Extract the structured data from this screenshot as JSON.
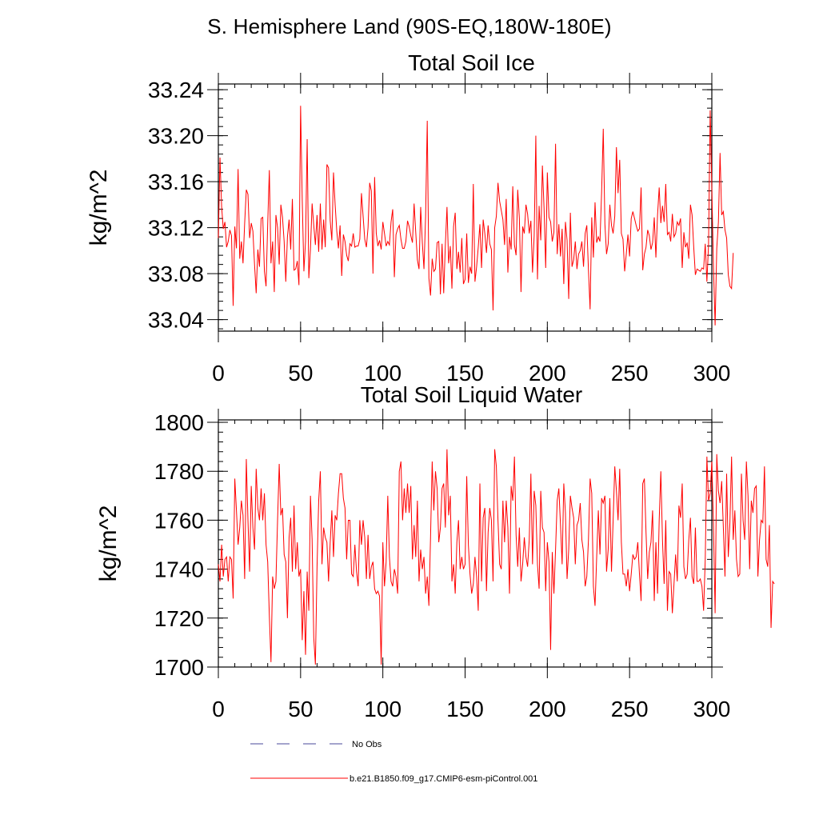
{
  "page": {
    "main_title": "S. Hemisphere Land (90S-EQ,180W-180E)"
  },
  "chart_data": [
    {
      "type": "line",
      "title": "Total Soil Ice",
      "xlabel": "",
      "ylabel": "kg/m^2",
      "xlim": [
        0,
        300
      ],
      "ylim": [
        33.03,
        33.245
      ],
      "x_ticks": [
        0,
        50,
        100,
        150,
        200,
        250,
        300
      ],
      "y_ticks": [
        33.04,
        33.08,
        33.12,
        33.16,
        33.2,
        33.24
      ],
      "y_tick_labels": [
        "33.04",
        "33.08",
        "33.12",
        "33.16",
        "33.20",
        "33.24"
      ],
      "series": [
        {
          "name": "b.e21.B1850.f09_g17.CMIP6-esm-piControl.001",
          "color": "#ff0000",
          "values": [
            33.111,
            33.181,
            33.138,
            33.119,
            33.125,
            33.103,
            33.108,
            33.118,
            33.113,
            33.052,
            33.121,
            33.102,
            33.171,
            33.093,
            33.108,
            33.089,
            33.124,
            33.153,
            33.149,
            33.111,
            33.124,
            33.117,
            33.088,
            33.063,
            33.101,
            33.086,
            33.128,
            33.129,
            33.082,
            33.069,
            33.123,
            33.17,
            33.089,
            33.108,
            33.064,
            33.131,
            33.12,
            33.088,
            33.14,
            33.129,
            33.108,
            33.073,
            33.112,
            33.127,
            33.101,
            33.145,
            33.083,
            33.084,
            33.091,
            33.07,
            33.226,
            33.144,
            33.082,
            33.108,
            33.197,
            33.076,
            33.101,
            33.141,
            33.122,
            33.105,
            33.131,
            33.099,
            33.141,
            33.101,
            33.127,
            33.103,
            33.175,
            33.172,
            33.126,
            33.109,
            33.168,
            33.14,
            33.117,
            33.102,
            33.122,
            33.078,
            33.114,
            33.108,
            33.096,
            33.091,
            33.106,
            33.104,
            33.115,
            33.103,
            33.104,
            33.104,
            33.11,
            33.15,
            33.13,
            33.11,
            33.103,
            33.12,
            33.159,
            33.152,
            33.08,
            33.164,
            33.115,
            33.104,
            33.109,
            33.101,
            33.125,
            33.115,
            33.104,
            33.108,
            33.105,
            33.125,
            33.136,
            33.077,
            33.114,
            33.119,
            33.122,
            33.11,
            33.102,
            33.102,
            33.108,
            33.126,
            33.121,
            33.113,
            33.107,
            33.141,
            33.116,
            33.092,
            33.084,
            33.138,
            33.107,
            33.084,
            33.13,
            33.213,
            33.076,
            33.061,
            33.093,
            33.082,
            33.084,
            33.107,
            33.108,
            33.062,
            33.106,
            33.063,
            33.105,
            33.138,
            33.089,
            33.104,
            33.067,
            33.121,
            33.133,
            33.084,
            33.099,
            33.081,
            33.111,
            33.071,
            33.075,
            33.115,
            33.072,
            33.086,
            33.08,
            33.158,
            33.073,
            33.086,
            33.103,
            33.123,
            33.085,
            33.127,
            33.115,
            33.098,
            33.122,
            33.106,
            33.101,
            33.048,
            33.12,
            33.13,
            33.159,
            33.143,
            33.135,
            33.127,
            33.105,
            33.145,
            33.081,
            33.112,
            33.101,
            33.156,
            33.105,
            33.096,
            33.153,
            33.128,
            33.064,
            33.121,
            33.115,
            33.14,
            33.132,
            33.115,
            33.126,
            33.081,
            33.113,
            33.2,
            33.075,
            33.139,
            33.109,
            33.174,
            33.137,
            33.085,
            33.168,
            33.129,
            33.125,
            33.108,
            33.116,
            33.193,
            33.097,
            33.123,
            33.095,
            33.119,
            33.071,
            33.125,
            33.109,
            33.058,
            33.133,
            33.086,
            33.092,
            33.108,
            33.084,
            33.097,
            33.1,
            33.108,
            33.086,
            33.115,
            33.122,
            33.083,
            33.049,
            33.129,
            33.094,
            33.142,
            33.107,
            33.112,
            33.108,
            33.151,
            33.206,
            33.123,
            33.097,
            33.106,
            33.14,
            33.122,
            33.115,
            33.13,
            33.19,
            33.15,
            33.179,
            33.115,
            33.11,
            33.082,
            33.097,
            33.114,
            33.095,
            33.128,
            33.134,
            33.128,
            33.122,
            33.117,
            33.119,
            33.155,
            33.083,
            33.097,
            33.103,
            33.118,
            33.113,
            33.101,
            33.107,
            33.129,
            33.094,
            33.131,
            33.155,
            33.124,
            33.139,
            33.125,
            33.158,
            33.114,
            33.116,
            33.108,
            33.132,
            33.112,
            33.115,
            33.125,
            33.122,
            33.128,
            33.085,
            33.116,
            33.103,
            33.107,
            33.093,
            33.14,
            33.131,
            33.103,
            33.079,
            33.084,
            33.083,
            33.082,
            33.085,
            33.084,
            33.106,
            33.073,
            33.105,
            33.222,
            33.154,
            33.086,
            33.035,
            33.102,
            33.125,
            33.185,
            33.131,
            33.134,
            33.118,
            33.111,
            33.079,
            33.069,
            33.067,
            33.098
          ]
        },
        {
          "name": "No Obs",
          "color": "#4a4a9a",
          "values": []
        }
      ]
    },
    {
      "type": "line",
      "title": "Total Soil Liquid Water",
      "xlabel": "",
      "ylabel": "kg/m^2",
      "xlim": [
        0,
        300
      ],
      "ylim": [
        1700,
        1801
      ],
      "x_ticks": [
        0,
        50,
        100,
        150,
        200,
        250,
        300
      ],
      "y_ticks": [
        1700,
        1720,
        1740,
        1760,
        1780,
        1800
      ],
      "y_tick_labels": [
        "1700",
        "1720",
        "1740",
        "1760",
        "1780",
        "1800"
      ],
      "series": [
        {
          "name": "b.e21.B1850.f09_g17.CMIP6-esm-piControl.001",
          "color": "#ff0000",
          "values": [
            1742,
            1735,
            1750,
            1737,
            1744,
            1745,
            1735,
            1745,
            1744,
            1728,
            1777,
            1764,
            1750,
            1757,
            1768,
            1762,
            1736,
            1785,
            1760,
            1739,
            1774,
            1757,
            1748,
            1781,
            1765,
            1760,
            1773,
            1760,
            1771,
            1750,
            1743,
            1721,
            1702,
            1737,
            1732,
            1735,
            1760,
            1783,
            1762,
            1765,
            1746,
            1743,
            1720,
            1753,
            1761,
            1739,
            1766,
            1740,
            1751,
            1737,
            1740,
            1711,
            1731,
            1705,
            1739,
            1723,
            1770,
            1752,
            1712,
            1701,
            1741,
            1768,
            1780,
            1742,
            1757,
            1753,
            1751,
            1735,
            1751,
            1764,
            1745,
            1762,
            1760,
            1771,
            1779,
            1779,
            1769,
            1765,
            1744,
            1760,
            1760,
            1738,
            1737,
            1750,
            1739,
            1733,
            1760,
            1750,
            1760,
            1753,
            1736,
            1754,
            1736,
            1741,
            1743,
            1732,
            1730,
            1731,
            1729,
            1701,
            1751,
            1733,
            1743,
            1770,
            1745,
            1735,
            1733,
            1740,
            1737,
            1730,
            1780,
            1784,
            1760,
            1773,
            1763,
            1775,
            1763,
            1774,
            1744,
            1758,
            1745,
            1768,
            1735,
            1748,
            1740,
            1745,
            1730,
            1737,
            1725,
            1753,
            1784,
            1764,
            1780,
            1773,
            1751,
            1757,
            1773,
            1775,
            1757,
            1789,
            1762,
            1770,
            1735,
            1742,
            1730,
            1751,
            1760,
            1740,
            1745,
            1740,
            1742,
            1778,
            1750,
            1738,
            1730,
            1734,
            1745,
            1737,
            1723,
            1775,
            1735,
            1761,
            1765,
            1731,
            1755,
            1765,
            1760,
            1735,
            1789,
            1782,
            1760,
            1742,
            1740,
            1768,
            1751,
            1768,
            1757,
            1730,
            1774,
            1768,
            1786,
            1754,
            1741,
            1757,
            1735,
            1742,
            1753,
            1745,
            1741,
            1752,
            1779,
            1742,
            1772,
            1766,
            1742,
            1732,
            1772,
            1757,
            1755,
            1731,
            1751,
            1743,
            1707,
            1747,
            1730,
            1748,
            1768,
            1773,
            1758,
            1742,
            1775,
            1763,
            1736,
            1748,
            1770,
            1765,
            1761,
            1742,
            1758,
            1760,
            1767,
            1752,
            1747,
            1733,
            1737,
            1752,
            1777,
            1771,
            1733,
            1725,
            1745,
            1764,
            1746,
            1769,
            1767,
            1770,
            1739,
            1748,
            1769,
            1739,
            1760,
            1782,
            1772,
            1760,
            1781,
            1751,
            1738,
            1738,
            1733,
            1740,
            1731,
            1738,
            1746,
            1744,
            1745,
            1751,
            1738,
            1727,
            1775,
            1777,
            1755,
            1736,
            1747,
            1751,
            1764,
            1727,
            1751,
            1730,
            1760,
            1780,
            1752,
            1734,
            1760,
            1723,
            1739,
            1738,
            1722,
            1734,
            1746,
            1735,
            1766,
            1761,
            1775,
            1741,
            1736,
            1738,
            1752,
            1761,
            1737,
            1734,
            1757,
            1735,
            1735,
            1736,
            1733,
            1723,
            1744,
            1786,
            1768,
            1771,
            1784,
            1758,
            1722,
            1787,
            1772,
            1767,
            1776,
            1757,
            1737,
            1779,
            1745,
            1759,
            1786,
            1752,
            1764,
            1744,
            1737,
            1738,
            1779,
            1760,
            1752,
            1784,
            1770,
            1740,
            1768,
            1763,
            1773,
            1774,
            1737,
            1752,
            1760,
            1759,
            1782,
            1744,
            1741,
            1758,
            1716,
            1735,
            1734
          ]
        }
      ]
    }
  ],
  "legend": {
    "items": [
      {
        "label": "No Obs",
        "color": "#4a4a9a",
        "style": "dashed"
      },
      {
        "label": "b.e21.B1850.f09_g17.CMIP6-esm-piControl.001",
        "color": "#ff0000",
        "style": "solid"
      }
    ]
  }
}
